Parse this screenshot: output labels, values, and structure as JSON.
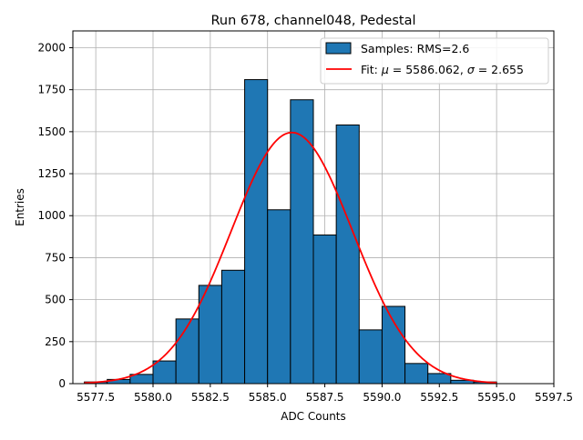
{
  "chart_data": {
    "type": "histogram",
    "title": "Run 678, channel048, Pedestal",
    "xlabel": "ADC Counts",
    "ylabel": "Entries",
    "xlim": [
      5576.5,
      5597.5
    ],
    "ylim": [
      0,
      2100
    ],
    "xticks": [
      5577.5,
      5580.0,
      5582.5,
      5585.0,
      5587.5,
      5590.0,
      5592.5,
      5595.0,
      5597.5
    ],
    "xtick_labels": [
      "5577.5",
      "5580.0",
      "5582.5",
      "5585.0",
      "5587.5",
      "5590.0",
      "5592.5",
      "5595.0",
      "5597.5"
    ],
    "yticks": [
      0,
      250,
      500,
      750,
      1000,
      1250,
      1500,
      1750,
      2000
    ],
    "ytick_labels": [
      "0",
      "250",
      "500",
      "750",
      "1000",
      "1250",
      "1500",
      "1750",
      "2000"
    ],
    "grid": true,
    "bin_width": 1,
    "bin_edges_start": 5577,
    "counts": [
      10,
      25,
      55,
      135,
      385,
      585,
      675,
      1810,
      1035,
      1690,
      885,
      1540,
      320,
      460,
      120,
      60,
      20,
      10
    ],
    "bar_color": "#1f77b4",
    "fit": {
      "mu": 5586.062,
      "sigma": 2.655,
      "amplitude": 1495,
      "color": "#ff0000"
    },
    "legend": {
      "placement": "upper-right",
      "samples_label": "Samples: RMS=2.6",
      "fit_label_prefix": "Fit: ",
      "mu_symbol": "μ",
      "mu_text": " = 5586.062, ",
      "sigma_symbol": "σ",
      "sigma_text": " = 2.655"
    }
  }
}
